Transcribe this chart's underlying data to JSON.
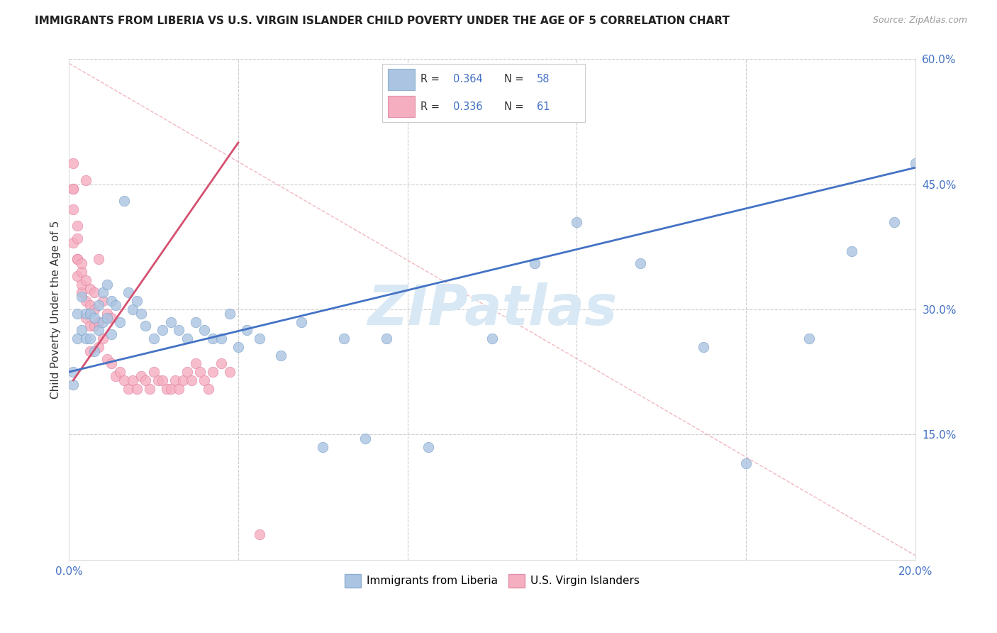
{
  "title": "IMMIGRANTS FROM LIBERIA VS U.S. VIRGIN ISLANDER CHILD POVERTY UNDER THE AGE OF 5 CORRELATION CHART",
  "source": "Source: ZipAtlas.com",
  "ylabel_left": "Child Poverty Under the Age of 5",
  "x_min": 0.0,
  "x_max": 0.2,
  "y_min": 0.0,
  "y_max": 0.6,
  "x_ticks": [
    0.0,
    0.04,
    0.08,
    0.12,
    0.16,
    0.2
  ],
  "y_ticks_right": [
    0.15,
    0.3,
    0.45,
    0.6
  ],
  "y_tick_labels_right": [
    "15.0%",
    "30.0%",
    "45.0%",
    "60.0%"
  ],
  "legend_R1": "0.364",
  "legend_N1": "58",
  "legend_R2": "0.336",
  "legend_N2": "61",
  "color_blue": "#aac4e2",
  "color_pink": "#f5adc0",
  "color_blue_line": "#4472c4",
  "color_pink_line": "#d45070",
  "color_ref_line": "#f0b0b8",
  "watermark": "ZIPatlas",
  "watermark_color": "#d8e8f4",
  "blue_line_x": [
    0.0,
    0.2
  ],
  "blue_line_y": [
    0.225,
    0.47
  ],
  "pink_line_x": [
    0.001,
    0.04
  ],
  "pink_line_y": [
    0.215,
    0.5
  ],
  "ref_line_x": [
    0.0,
    0.2
  ],
  "ref_line_y": [
    0.595,
    0.005
  ],
  "blue_scatter_x": [
    0.001,
    0.001,
    0.002,
    0.002,
    0.003,
    0.003,
    0.004,
    0.004,
    0.005,
    0.005,
    0.006,
    0.006,
    0.007,
    0.007,
    0.008,
    0.008,
    0.009,
    0.009,
    0.01,
    0.01,
    0.011,
    0.012,
    0.013,
    0.014,
    0.015,
    0.016,
    0.017,
    0.018,
    0.02,
    0.022,
    0.024,
    0.026,
    0.028,
    0.03,
    0.032,
    0.034,
    0.036,
    0.038,
    0.04,
    0.042,
    0.045,
    0.05,
    0.055,
    0.06,
    0.065,
    0.07,
    0.075,
    0.085,
    0.1,
    0.11,
    0.12,
    0.135,
    0.15,
    0.16,
    0.175,
    0.185,
    0.195,
    0.2
  ],
  "blue_scatter_y": [
    0.225,
    0.21,
    0.295,
    0.265,
    0.315,
    0.275,
    0.295,
    0.265,
    0.295,
    0.265,
    0.29,
    0.25,
    0.305,
    0.275,
    0.32,
    0.285,
    0.33,
    0.29,
    0.31,
    0.27,
    0.305,
    0.285,
    0.43,
    0.32,
    0.3,
    0.31,
    0.295,
    0.28,
    0.265,
    0.275,
    0.285,
    0.275,
    0.265,
    0.285,
    0.275,
    0.265,
    0.265,
    0.295,
    0.255,
    0.275,
    0.265,
    0.245,
    0.285,
    0.135,
    0.265,
    0.145,
    0.265,
    0.135,
    0.265,
    0.355,
    0.405,
    0.355,
    0.255,
    0.115,
    0.265,
    0.37,
    0.405,
    0.475
  ],
  "pink_scatter_x": [
    0.001,
    0.001,
    0.001,
    0.001,
    0.001,
    0.002,
    0.002,
    0.002,
    0.002,
    0.002,
    0.003,
    0.003,
    0.003,
    0.003,
    0.004,
    0.004,
    0.004,
    0.004,
    0.005,
    0.005,
    0.005,
    0.005,
    0.006,
    0.006,
    0.006,
    0.007,
    0.007,
    0.007,
    0.008,
    0.008,
    0.009,
    0.009,
    0.01,
    0.01,
    0.011,
    0.012,
    0.013,
    0.014,
    0.015,
    0.016,
    0.017,
    0.018,
    0.019,
    0.02,
    0.021,
    0.022,
    0.023,
    0.024,
    0.025,
    0.026,
    0.027,
    0.028,
    0.029,
    0.03,
    0.031,
    0.032,
    0.033,
    0.034,
    0.036,
    0.038,
    0.045
  ],
  "pink_scatter_y": [
    0.475,
    0.445,
    0.445,
    0.38,
    0.42,
    0.4,
    0.385,
    0.36,
    0.34,
    0.36,
    0.345,
    0.32,
    0.355,
    0.33,
    0.455,
    0.335,
    0.31,
    0.29,
    0.325,
    0.305,
    0.28,
    0.25,
    0.32,
    0.3,
    0.28,
    0.36,
    0.285,
    0.255,
    0.31,
    0.265,
    0.295,
    0.24,
    0.29,
    0.235,
    0.22,
    0.225,
    0.215,
    0.205,
    0.215,
    0.205,
    0.22,
    0.215,
    0.205,
    0.225,
    0.215,
    0.215,
    0.205,
    0.205,
    0.215,
    0.205,
    0.215,
    0.225,
    0.215,
    0.235,
    0.225,
    0.215,
    0.205,
    0.225,
    0.235,
    0.225,
    0.03
  ]
}
